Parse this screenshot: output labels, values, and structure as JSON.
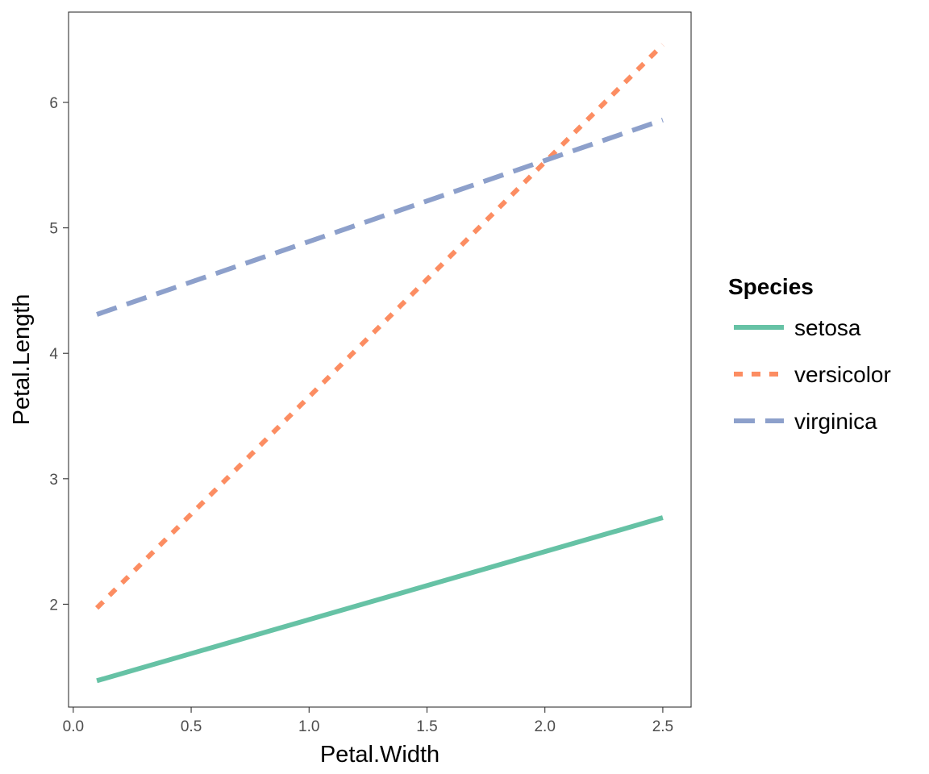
{
  "chart_data": {
    "type": "line",
    "xlabel": "Petal.Width",
    "ylabel": "Petal.Length",
    "xlim": [
      -0.02,
      2.62
    ],
    "ylim": [
      1.18,
      6.72
    ],
    "xticks": [
      0.0,
      0.5,
      1.0,
      1.5,
      2.0,
      2.5
    ],
    "xtick_labels": [
      "0.0",
      "0.5",
      "1.0",
      "1.5",
      "2.0",
      "2.5"
    ],
    "yticks": [
      2,
      3,
      4,
      5,
      6
    ],
    "ytick_labels": [
      "2",
      "3",
      "4",
      "5",
      "6"
    ],
    "grid": false,
    "legend": {
      "title": "Species",
      "position": "right"
    },
    "series": [
      {
        "name": "setosa",
        "x": [
          0.1,
          2.5
        ],
        "y": [
          1.39,
          2.69
        ],
        "color": "#66c2a5",
        "linestyle": "solid"
      },
      {
        "name": "versicolor",
        "x": [
          0.1,
          2.5
        ],
        "y": [
          1.97,
          6.46
        ],
        "color": "#fc8d62",
        "linestyle": "dotted"
      },
      {
        "name": "virginica",
        "x": [
          0.1,
          2.5
        ],
        "y": [
          4.31,
          5.86
        ],
        "color": "#8da0cb",
        "linestyle": "dashed"
      }
    ]
  }
}
